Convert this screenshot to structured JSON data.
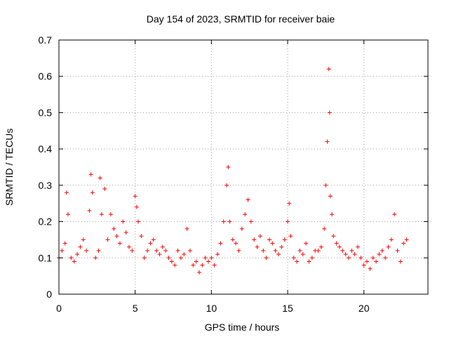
{
  "chart_data": {
    "type": "scatter",
    "title": "Day 154 of 2023, SRMTID for receiver baie",
    "xlabel": "GPS time / hours",
    "ylabel": "SRMTID / TECUs",
    "xlim": [
      0,
      24.2
    ],
    "ylim": [
      0,
      0.7
    ],
    "xticks": [
      0,
      5,
      10,
      15,
      20
    ],
    "yticks": [
      0,
      0.1,
      0.2,
      0.3,
      0.4,
      0.5,
      0.6,
      0.7
    ],
    "xtick_labels": [
      "0",
      "5",
      "10",
      "15",
      "20"
    ],
    "ytick_labels": [
      "0",
      "0.1",
      "0.2",
      "0.3",
      "0.4",
      "0.5",
      "0.6",
      "0.7"
    ],
    "grid": true,
    "marker": "plus",
    "color": "#ff0000",
    "series": [
      {
        "name": "SRMTID",
        "x": [
          0.0,
          0.2,
          0.4,
          0.5,
          0.6,
          0.8,
          1.0,
          1.2,
          1.4,
          1.6,
          1.8,
          2.0,
          2.1,
          2.2,
          2.4,
          2.6,
          2.7,
          2.8,
          3.0,
          3.2,
          3.4,
          3.6,
          3.8,
          4.0,
          4.2,
          4.4,
          4.6,
          4.8,
          5.0,
          5.1,
          5.2,
          5.4,
          5.6,
          5.8,
          6.0,
          6.2,
          6.4,
          6.6,
          6.8,
          7.0,
          7.2,
          7.4,
          7.6,
          7.8,
          8.0,
          8.2,
          8.4,
          8.6,
          8.8,
          9.0,
          9.2,
          9.4,
          9.6,
          9.8,
          10.0,
          10.2,
          10.4,
          10.6,
          10.8,
          11.0,
          11.1,
          11.2,
          11.4,
          11.6,
          11.8,
          12.0,
          12.2,
          12.4,
          12.6,
          12.8,
          13.0,
          13.2,
          13.4,
          13.6,
          13.8,
          14.0,
          14.2,
          14.4,
          14.6,
          14.8,
          15.0,
          15.1,
          15.2,
          15.4,
          15.6,
          15.8,
          16.0,
          16.2,
          16.4,
          16.6,
          16.8,
          17.0,
          17.2,
          17.4,
          17.5,
          17.6,
          17.7,
          17.75,
          17.8,
          17.9,
          18.0,
          18.2,
          18.4,
          18.6,
          18.8,
          19.0,
          19.2,
          19.4,
          19.6,
          19.8,
          20.0,
          20.2,
          20.4,
          20.6,
          20.8,
          21.0,
          21.2,
          21.4,
          21.6,
          21.8,
          22.0,
          22.2,
          22.4,
          22.6,
          22.8
        ],
        "y": [
          0.1,
          0.12,
          0.14,
          0.28,
          0.22,
          0.1,
          0.09,
          0.11,
          0.13,
          0.15,
          0.12,
          0.23,
          0.33,
          0.28,
          0.1,
          0.12,
          0.32,
          0.22,
          0.29,
          0.15,
          0.22,
          0.18,
          0.16,
          0.14,
          0.2,
          0.17,
          0.13,
          0.12,
          0.27,
          0.24,
          0.2,
          0.16,
          0.1,
          0.12,
          0.14,
          0.15,
          0.12,
          0.11,
          0.13,
          0.12,
          0.1,
          0.09,
          0.08,
          0.12,
          0.1,
          0.11,
          0.18,
          0.12,
          0.08,
          0.09,
          0.06,
          0.08,
          0.1,
          0.09,
          0.1,
          0.08,
          0.11,
          0.14,
          0.2,
          0.3,
          0.35,
          0.2,
          0.15,
          0.14,
          0.12,
          0.18,
          0.22,
          0.26,
          0.2,
          0.15,
          0.13,
          0.16,
          0.12,
          0.1,
          0.15,
          0.14,
          0.12,
          0.11,
          0.13,
          0.15,
          0.2,
          0.25,
          0.16,
          0.1,
          0.09,
          0.12,
          0.11,
          0.14,
          0.09,
          0.1,
          0.12,
          0.12,
          0.13,
          0.18,
          0.3,
          0.42,
          0.62,
          0.5,
          0.27,
          0.22,
          0.16,
          0.14,
          0.13,
          0.12,
          0.11,
          0.1,
          0.12,
          0.11,
          0.13,
          0.1,
          0.08,
          0.09,
          0.07,
          0.1,
          0.09,
          0.11,
          0.12,
          0.1,
          0.13,
          0.15,
          0.22,
          0.12,
          0.09,
          0.14,
          0.15
        ]
      }
    ]
  }
}
